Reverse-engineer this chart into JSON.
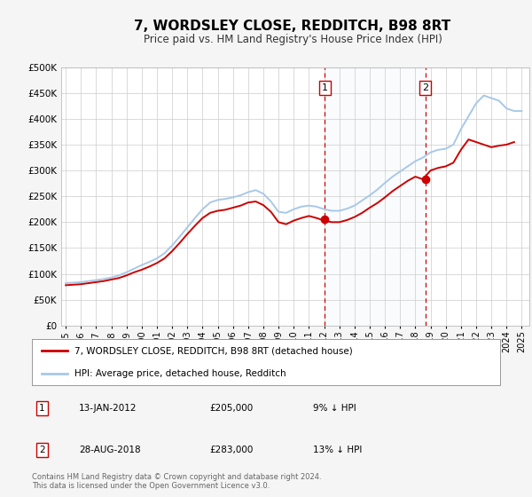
{
  "title": "7, WORDSLEY CLOSE, REDDITCH, B98 8RT",
  "subtitle": "Price paid vs. HM Land Registry's House Price Index (HPI)",
  "legend_entry1": "7, WORDSLEY CLOSE, REDDITCH, B98 8RT (detached house)",
  "legend_entry2": "HPI: Average price, detached house, Redditch",
  "marker1_date": 2012.04,
  "marker1_price": 205000,
  "marker1_text": "13-JAN-2012",
  "marker1_pct": "9% ↓ HPI",
  "marker2_date": 2018.66,
  "marker2_price": 283000,
  "marker2_text": "28-AUG-2018",
  "marker2_pct": "13% ↓ HPI",
  "footnote1": "Contains HM Land Registry data © Crown copyright and database right 2024.",
  "footnote2": "This data is licensed under the Open Government Licence v3.0.",
  "hpi_color": "#a8c8e8",
  "price_color": "#cc0000",
  "marker_color": "#cc0000",
  "vline_color": "#cc0000",
  "bg_color": "#f5f5f5",
  "plot_bg": "#ffffff",
  "grid_color": "#cccccc",
  "ylim": [
    0,
    500000
  ],
  "xlim_start": 1994.7,
  "xlim_end": 2025.5,
  "yticks": [
    0,
    50000,
    100000,
    150000,
    200000,
    250000,
    300000,
    350000,
    400000,
    450000,
    500000
  ],
  "xticks": [
    1995,
    1996,
    1997,
    1998,
    1999,
    2000,
    2001,
    2002,
    2003,
    2004,
    2005,
    2006,
    2007,
    2008,
    2009,
    2010,
    2011,
    2012,
    2013,
    2014,
    2015,
    2016,
    2017,
    2018,
    2019,
    2020,
    2021,
    2022,
    2023,
    2024,
    2025
  ],
  "hpi_years": [
    1995.0,
    1995.5,
    1996.0,
    1996.5,
    1997.0,
    1997.5,
    1998.0,
    1998.5,
    1999.0,
    1999.5,
    2000.0,
    2000.5,
    2001.0,
    2001.5,
    2002.0,
    2002.5,
    2003.0,
    2003.5,
    2004.0,
    2004.5,
    2005.0,
    2005.5,
    2006.0,
    2006.5,
    2007.0,
    2007.5,
    2008.0,
    2008.5,
    2009.0,
    2009.5,
    2010.0,
    2010.5,
    2011.0,
    2011.5,
    2012.0,
    2012.5,
    2013.0,
    2013.5,
    2014.0,
    2014.5,
    2015.0,
    2015.5,
    2016.0,
    2016.5,
    2017.0,
    2017.5,
    2018.0,
    2018.5,
    2019.0,
    2019.5,
    2020.0,
    2020.5,
    2021.0,
    2021.5,
    2022.0,
    2022.5,
    2023.0,
    2023.5,
    2024.0,
    2024.5,
    2025.0
  ],
  "hpi_values": [
    82000,
    83000,
    84000,
    86000,
    88000,
    90000,
    93000,
    97000,
    103000,
    110000,
    117000,
    123000,
    130000,
    140000,
    155000,
    172000,
    190000,
    208000,
    225000,
    238000,
    243000,
    245000,
    248000,
    252000,
    258000,
    262000,
    255000,
    240000,
    220000,
    218000,
    225000,
    230000,
    232000,
    230000,
    225000,
    222000,
    222000,
    226000,
    232000,
    242000,
    252000,
    263000,
    276000,
    288000,
    298000,
    308000,
    318000,
    325000,
    335000,
    340000,
    342000,
    350000,
    380000,
    405000,
    430000,
    445000,
    440000,
    435000,
    420000,
    415000,
    415000
  ],
  "price_years": [
    1995.0,
    1995.5,
    1996.0,
    1996.5,
    1997.0,
    1997.5,
    1998.0,
    1998.5,
    1999.0,
    1999.5,
    2000.0,
    2000.5,
    2001.0,
    2001.5,
    2002.0,
    2002.5,
    2003.0,
    2003.5,
    2004.0,
    2004.5,
    2005.0,
    2005.5,
    2006.0,
    2006.5,
    2007.0,
    2007.5,
    2008.0,
    2008.5,
    2009.0,
    2009.5,
    2010.0,
    2010.5,
    2011.0,
    2011.5,
    2012.0,
    2012.5,
    2013.0,
    2013.5,
    2014.0,
    2014.5,
    2015.0,
    2015.5,
    2016.0,
    2016.5,
    2017.0,
    2017.5,
    2018.0,
    2018.5,
    2019.0,
    2019.5,
    2020.0,
    2020.5,
    2021.0,
    2021.5,
    2022.0,
    2022.5,
    2023.0,
    2023.5,
    2024.0,
    2024.5
  ],
  "price_values": [
    78000,
    79000,
    80000,
    82000,
    84000,
    86000,
    89000,
    92000,
    97000,
    103000,
    108000,
    114000,
    121000,
    130000,
    144000,
    160000,
    177000,
    193000,
    208000,
    218000,
    222000,
    224000,
    228000,
    232000,
    238000,
    240000,
    233000,
    220000,
    200000,
    196000,
    203000,
    208000,
    212000,
    208000,
    203000,
    200000,
    200000,
    204000,
    210000,
    218000,
    228000,
    237000,
    248000,
    260000,
    270000,
    280000,
    288000,
    283000,
    300000,
    305000,
    308000,
    315000,
    340000,
    360000,
    355000,
    350000,
    345000,
    348000,
    350000,
    355000
  ]
}
